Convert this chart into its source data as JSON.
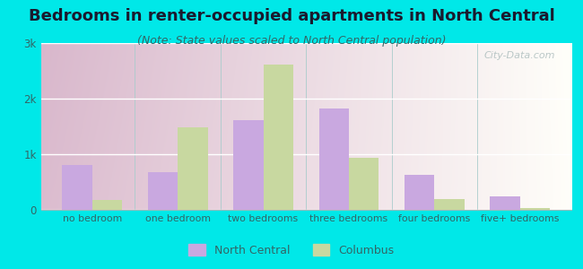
{
  "title": "Bedrooms in renter-occupied apartments in North Central",
  "subtitle": "(Note: State values scaled to North Central population)",
  "categories": [
    "no bedroom",
    "one bedroom",
    "two bedrooms",
    "three bedrooms",
    "four bedrooms",
    "five+ bedrooms"
  ],
  "north_central": [
    800,
    680,
    1620,
    1820,
    630,
    250
  ],
  "columbus": [
    180,
    1480,
    2620,
    940,
    190,
    25
  ],
  "north_central_color": "#c9a8e0",
  "columbus_color": "#c8d8a0",
  "background_outer": "#00e8e8",
  "ylim": [
    0,
    3000
  ],
  "yticks": [
    0,
    1000,
    2000,
    3000
  ],
  "ytick_labels": [
    "0",
    "1k",
    "2k",
    "3k"
  ],
  "title_fontsize": 13,
  "subtitle_fontsize": 9,
  "bar_width": 0.35,
  "legend_nc": "North Central",
  "legend_col": "Columbus",
  "title_color": "#1a1a2e",
  "subtitle_color": "#336666",
  "tick_color": "#336666",
  "watermark": "City-Data.com"
}
